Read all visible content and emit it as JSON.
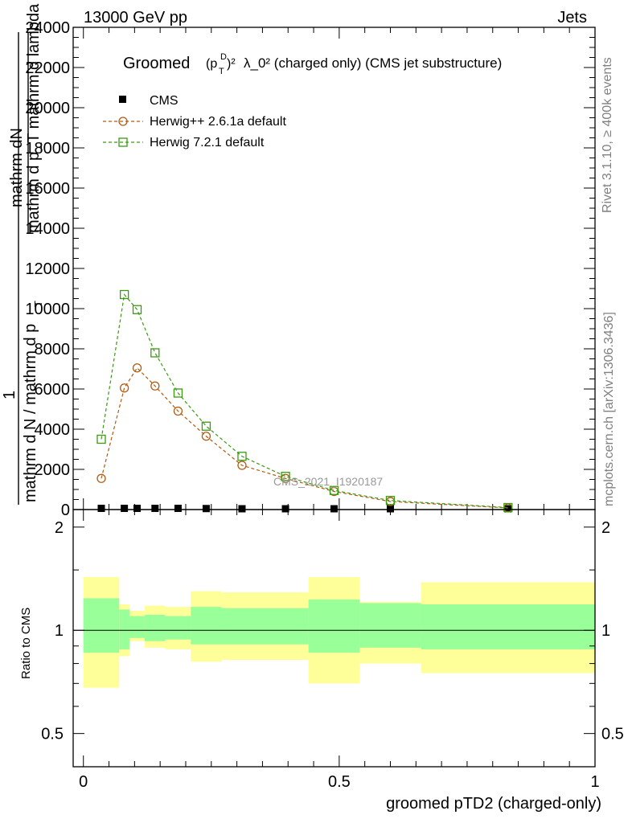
{
  "header": {
    "left": "13000 GeV pp",
    "right": "Jets"
  },
  "side_labels": {
    "rivet": "Rivet 3.1.10, ≥ 400k events",
    "mcplots": "mcplots.cern.ch [arXiv:1306.3436]"
  },
  "title": {
    "prefix": "Groomed",
    "p": "(p",
    "sub_T": "T",
    "sup_D": "D",
    "close_sq": ")²",
    "rest": "λ_0²  (charged only) (CMS jet substructure)"
  },
  "watermark": "CMS_2021_I1920187",
  "colors": {
    "data": "#000000",
    "herwig_old": "#b05a10",
    "herwig_new": "#3a9a10",
    "band_inner": "#99ff99",
    "band_outer": "#ffff99"
  },
  "chart_data": [
    {
      "type": "line",
      "panel": "main",
      "ylabel_lines": [
        "mathrm d N / mathrm d p_T mathrm d lambda",
        "1",
        "mathrm d p_T mathrm d",
        "mathrm dN"
      ],
      "ylabel_display": {
        "num": "mathrm dN",
        "den": "mathrm d p_T mathrm d lambda",
        "one": "1",
        "frac_den": "mathrm d N / mathrm d p",
        "sub_T": "T"
      },
      "ylim": [
        0,
        24000
      ],
      "xlim": [
        -0.02,
        1.0
      ],
      "yticks": [
        0,
        2000,
        4000,
        6000,
        8000,
        10000,
        12000,
        14000,
        16000,
        18000,
        20000,
        22000,
        24000
      ],
      "ytick_labels": [
        "0",
        "2000",
        "4000",
        "6000",
        "8000",
        "10000",
        "12000",
        "14000",
        "16000",
        "18000",
        "20000",
        "22000",
        "24000"
      ],
      "legend_position": "top-left",
      "series": [
        {
          "name": "CMS",
          "marker": "filled-square",
          "x": [
            0.035,
            0.08,
            0.105,
            0.14,
            0.185,
            0.24,
            0.31,
            0.395,
            0.49,
            0.6,
            0.83
          ],
          "y": [
            60,
            60,
            60,
            60,
            60,
            50,
            40,
            30,
            20,
            10,
            5
          ]
        },
        {
          "name": "Herwig++ 2.6.1a default",
          "marker": "open-circle",
          "x": [
            0.035,
            0.08,
            0.105,
            0.14,
            0.185,
            0.24,
            0.31,
            0.395,
            0.49,
            0.6,
            0.83
          ],
          "y": [
            1550,
            6050,
            7050,
            6150,
            4900,
            3650,
            2200,
            1550,
            900,
            400,
            80
          ]
        },
        {
          "name": "Herwig 7.2.1 default",
          "marker": "open-square",
          "x": [
            0.035,
            0.08,
            0.105,
            0.14,
            0.185,
            0.24,
            0.31,
            0.395,
            0.49,
            0.6,
            0.83
          ],
          "y": [
            3500,
            10700,
            9950,
            7800,
            5800,
            4150,
            2650,
            1650,
            950,
            450,
            100
          ]
        }
      ]
    },
    {
      "type": "area",
      "panel": "ratio",
      "ylabel": "Ratio to CMS",
      "xlabel": "groomed pTD2 (charged-only)",
      "ylim": [
        0.4,
        2.25
      ],
      "xlim": [
        -0.02,
        1.0
      ],
      "yticks": [
        0.5,
        1,
        2
      ],
      "ytick_labels": [
        "0.5",
        "1",
        "2"
      ],
      "xticks": [
        0,
        0.5,
        1
      ],
      "xtick_labels": [
        "0",
        "0.5",
        "1"
      ],
      "reference_line": 1,
      "bands": [
        {
          "x0": 0.0,
          "x1": 0.07,
          "inner": [
            0.86,
            1.24
          ],
          "outer": [
            0.68,
            1.43
          ]
        },
        {
          "x0": 0.07,
          "x1": 0.09,
          "inner": [
            0.88,
            1.15
          ],
          "outer": [
            0.84,
            1.19
          ]
        },
        {
          "x0": 0.09,
          "x1": 0.12,
          "inner": [
            0.95,
            1.1
          ],
          "outer": [
            0.93,
            1.14
          ]
        },
        {
          "x0": 0.12,
          "x1": 0.16,
          "inner": [
            0.93,
            1.11
          ],
          "outer": [
            0.89,
            1.18
          ]
        },
        {
          "x0": 0.16,
          "x1": 0.21,
          "inner": [
            0.94,
            1.1
          ],
          "outer": [
            0.88,
            1.17
          ]
        },
        {
          "x0": 0.21,
          "x1": 0.27,
          "inner": [
            0.91,
            1.17
          ],
          "outer": [
            0.81,
            1.3
          ]
        },
        {
          "x0": 0.27,
          "x1": 0.44,
          "inner": [
            0.91,
            1.16
          ],
          "outer": [
            0.82,
            1.29
          ]
        },
        {
          "x0": 0.44,
          "x1": 0.54,
          "inner": [
            0.86,
            1.23
          ],
          "outer": [
            0.7,
            1.43
          ]
        },
        {
          "x0": 0.54,
          "x1": 0.66,
          "inner": [
            0.89,
            1.2
          ],
          "outer": [
            0.8,
            1.21
          ]
        },
        {
          "x0": 0.66,
          "x1": 1.0,
          "inner": [
            0.88,
            1.19
          ],
          "outer": [
            0.75,
            1.38
          ]
        }
      ]
    }
  ]
}
